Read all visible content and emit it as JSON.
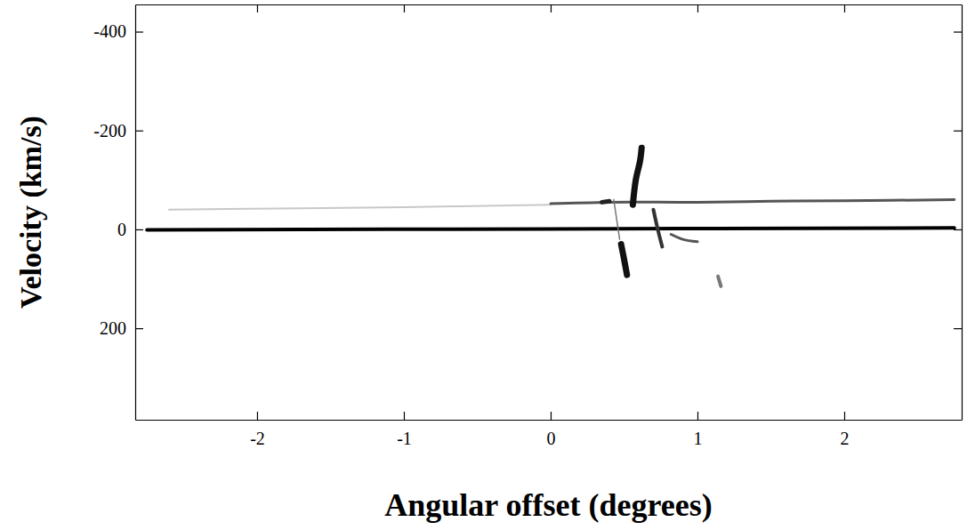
{
  "chart_data": {
    "type": "line",
    "x_label": "Angular offset (degrees)",
    "y_label": "Velocity (km/s)",
    "xlim": [
      -2.83,
      2.8
    ],
    "xticks": [
      -2,
      -1,
      0,
      1,
      2
    ],
    "ylim": [
      385,
      -455
    ],
    "yticks": [
      -400,
      -200,
      0,
      200
    ],
    "series": [
      {
        "x": [
          -2.75,
          0,
          2.75
        ],
        "values": [
          1,
          -1,
          -3
        ],
        "color": "#000000"
      },
      {
        "x": [
          -2.6,
          -1,
          0
        ],
        "values": [
          -40,
          -45,
          -50
        ],
        "color": "#c8c8c8"
      },
      {
        "x": [
          0,
          0.4,
          1,
          1.5,
          2,
          2.75
        ],
        "values": [
          -52,
          -55,
          -55,
          -57,
          -58,
          -60
        ],
        "color": "#555555"
      },
      {
        "x": [
          0.56,
          0.58,
          0.61,
          0.62
        ],
        "values": [
          -50,
          -100,
          -140,
          -165
        ],
        "color": "#111111"
      },
      {
        "x": [
          0.48,
          0.5,
          0.52
        ],
        "values": [
          30,
          60,
          92
        ],
        "color": "#111111"
      },
      {
        "x": [
          0.7,
          0.73,
          0.76
        ],
        "values": [
          -40,
          0,
          35
        ],
        "color": "#333333"
      },
      {
        "x": [
          0.82,
          0.9,
          1.0
        ],
        "values": [
          10,
          20,
          25
        ],
        "color": "#555555"
      },
      {
        "x": [
          1.14,
          1.16
        ],
        "values": [
          95,
          115
        ],
        "color": "#777777"
      },
      {
        "x": [
          0.35,
          0.4
        ],
        "values": [
          -55,
          -57
        ],
        "color": "#222222"
      },
      {
        "x": [
          0.43,
          0.47
        ],
        "values": [
          -60,
          20
        ],
        "color": "#777777"
      }
    ]
  }
}
